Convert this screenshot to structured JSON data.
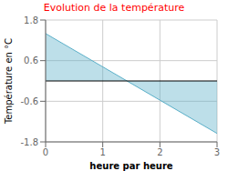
{
  "chart_data": {
    "type": "area",
    "title": "Evolution de la température",
    "xlabel": "heure par heure",
    "ylabel": "Température en °C",
    "x": [
      0,
      3
    ],
    "values": [
      1.4,
      -1.55
    ],
    "color": "#5aafc8",
    "xlim": [
      0,
      3
    ],
    "ylim": [
      -1.8,
      1.8
    ],
    "xticks": [
      0,
      1,
      2,
      3
    ],
    "yticks": [
      -1.8,
      -0.6,
      0.6,
      1.8
    ],
    "grid": true
  }
}
